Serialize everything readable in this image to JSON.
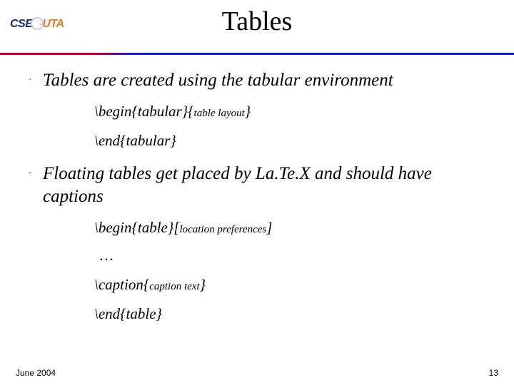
{
  "logo": {
    "part1": "CSE",
    "part2": "UTA"
  },
  "title": "Tables",
  "bullets": [
    {
      "text": "Tables are created using the tabular environment"
    },
    {
      "text": "Floating tables get placed by La.Te.X and should have captions"
    }
  ],
  "code": {
    "begin_tabular_cmd": "\\begin{tabular}{",
    "begin_tabular_arg": "table layout",
    "begin_tabular_close": "}",
    "end_tabular": "\\end{tabular}",
    "begin_table_cmd": "\\begin{table}[",
    "begin_table_arg": "location preferences",
    "begin_table_close": "]",
    "dots": "…",
    "caption_cmd": "\\caption{",
    "caption_arg": "caption text",
    "caption_close": "}",
    "end_table": "\\end{table}"
  },
  "footer": {
    "date": "June 2004",
    "page": "13"
  }
}
